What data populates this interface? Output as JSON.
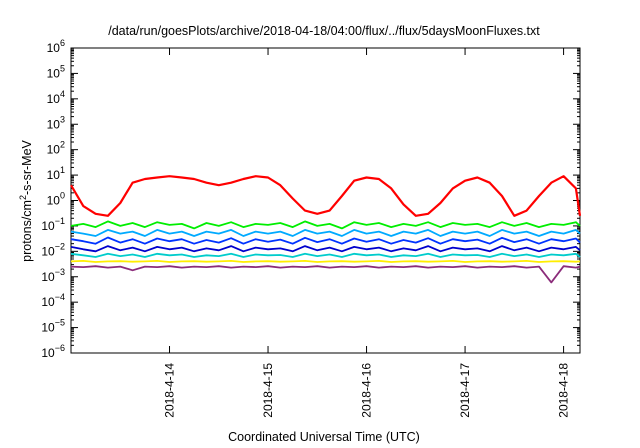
{
  "chart_data": {
    "type": "line",
    "title": "/data/run/goesPlots/archive/2018-04-18/04:00/flux/../flux/5daysMoonFluxes.txt",
    "xlabel": "Coordinated Universal Time (UTC)",
    "ylabel": "protons/cm2-s-sr-MeV",
    "yscale": "log",
    "ylim": [
      1e-06,
      1000000.0
    ],
    "xlim": [
      "2018-04-13T00:00",
      "2018-04-18T04:00"
    ],
    "y_ticks": [
      1e-06,
      1e-05,
      0.0001,
      0.001,
      0.01,
      0.1,
      1,
      10,
      100,
      1000,
      10000,
      100000,
      1000000
    ],
    "x_ticks": [
      "2018-4-14",
      "2018-4-15",
      "2018-4-16",
      "2018-4-17",
      "2018-4-18"
    ],
    "grid": false,
    "legend": "none",
    "x": [
      "2018-04-13T00:00",
      "2018-04-13T03:00",
      "2018-04-13T06:00",
      "2018-04-13T09:00",
      "2018-04-13T12:00",
      "2018-04-13T15:00",
      "2018-04-13T18:00",
      "2018-04-13T21:00",
      "2018-04-14T00:00",
      "2018-04-14T03:00",
      "2018-04-14T06:00",
      "2018-04-14T09:00",
      "2018-04-14T12:00",
      "2018-04-14T15:00",
      "2018-04-14T18:00",
      "2018-04-14T21:00",
      "2018-04-15T00:00",
      "2018-04-15T03:00",
      "2018-04-15T06:00",
      "2018-04-15T09:00",
      "2018-04-15T12:00",
      "2018-04-15T15:00",
      "2018-04-15T18:00",
      "2018-04-15T21:00",
      "2018-04-16T00:00",
      "2018-04-16T03:00",
      "2018-04-16T06:00",
      "2018-04-16T09:00",
      "2018-04-16T12:00",
      "2018-04-16T15:00",
      "2018-04-16T18:00",
      "2018-04-16T21:00",
      "2018-04-17T00:00",
      "2018-04-17T03:00",
      "2018-04-17T06:00",
      "2018-04-17T09:00",
      "2018-04-17T12:00",
      "2018-04-17T15:00",
      "2018-04-17T18:00",
      "2018-04-17T21:00",
      "2018-04-18T00:00",
      "2018-04-18T03:00",
      "2018-04-18T04:00"
    ],
    "series": [
      {
        "color": "#ff0000",
        "values": [
          4,
          0.6,
          0.3,
          0.25,
          0.8,
          5,
          7,
          8,
          9,
          8,
          7,
          5,
          4,
          5,
          7,
          9,
          8,
          4,
          1.2,
          0.4,
          0.3,
          0.4,
          1.5,
          6,
          8,
          7,
          3,
          0.7,
          0.25,
          0.3,
          0.8,
          3,
          6,
          8,
          5,
          1.5,
          0.25,
          0.4,
          1.5,
          5,
          9,
          3,
          0.25
        ]
      },
      {
        "color": "#00ee00",
        "values": [
          0.1,
          0.12,
          0.09,
          0.15,
          0.1,
          0.13,
          0.09,
          0.14,
          0.11,
          0.12,
          0.08,
          0.13,
          0.1,
          0.14,
          0.09,
          0.12,
          0.11,
          0.13,
          0.09,
          0.15,
          0.1,
          0.12,
          0.08,
          0.14,
          0.11,
          0.13,
          0.09,
          0.12,
          0.1,
          0.14,
          0.09,
          0.13,
          0.11,
          0.12,
          0.09,
          0.14,
          0.1,
          0.13,
          0.09,
          0.12,
          0.11,
          0.14,
          0.1
        ]
      },
      {
        "color": "#00aaff",
        "values": [
          0.06,
          0.05,
          0.04,
          0.07,
          0.05,
          0.06,
          0.04,
          0.07,
          0.05,
          0.06,
          0.04,
          0.06,
          0.05,
          0.07,
          0.04,
          0.06,
          0.05,
          0.06,
          0.04,
          0.07,
          0.05,
          0.06,
          0.04,
          0.07,
          0.05,
          0.06,
          0.04,
          0.06,
          0.05,
          0.07,
          0.04,
          0.06,
          0.05,
          0.06,
          0.04,
          0.07,
          0.05,
          0.06,
          0.04,
          0.06,
          0.05,
          0.07,
          0.05
        ]
      },
      {
        "color": "#0033ff",
        "values": [
          0.03,
          0.025,
          0.02,
          0.035,
          0.022,
          0.03,
          0.02,
          0.032,
          0.025,
          0.03,
          0.02,
          0.028,
          0.022,
          0.033,
          0.02,
          0.03,
          0.024,
          0.029,
          0.02,
          0.034,
          0.023,
          0.03,
          0.02,
          0.032,
          0.024,
          0.03,
          0.02,
          0.028,
          0.022,
          0.033,
          0.02,
          0.03,
          0.025,
          0.029,
          0.02,
          0.034,
          0.023,
          0.03,
          0.02,
          0.03,
          0.025,
          0.032,
          0.022
        ]
      },
      {
        "color": "#0000cc",
        "values": [
          0.015,
          0.012,
          0.01,
          0.016,
          0.011,
          0.014,
          0.01,
          0.015,
          0.012,
          0.014,
          0.01,
          0.013,
          0.011,
          0.016,
          0.01,
          0.014,
          0.012,
          0.013,
          0.01,
          0.016,
          0.011,
          0.014,
          0.01,
          0.015,
          0.012,
          0.014,
          0.01,
          0.013,
          0.011,
          0.016,
          0.01,
          0.014,
          0.012,
          0.013,
          0.01,
          0.016,
          0.011,
          0.014,
          0.01,
          0.014,
          0.012,
          0.015,
          0.011
        ]
      },
      {
        "color": "#00cccc",
        "values": [
          0.008,
          0.007,
          0.006,
          0.008,
          0.0065,
          0.0075,
          0.006,
          0.008,
          0.007,
          0.0075,
          0.006,
          0.007,
          0.0065,
          0.008,
          0.006,
          0.0075,
          0.007,
          0.0072,
          0.006,
          0.008,
          0.0065,
          0.0075,
          0.006,
          0.008,
          0.007,
          0.0075,
          0.006,
          0.007,
          0.0065,
          0.008,
          0.006,
          0.0075,
          0.007,
          0.0072,
          0.006,
          0.008,
          0.0065,
          0.0075,
          0.006,
          0.0075,
          0.007,
          0.008,
          0.006
        ]
      },
      {
        "color": "#ffee00",
        "values": [
          0.004,
          0.0042,
          0.0038,
          0.004,
          0.0041,
          0.0039,
          0.004,
          0.0042,
          0.0038,
          0.004,
          0.0041,
          0.0039,
          0.004,
          0.0042,
          0.0038,
          0.004,
          0.0041,
          0.0039,
          0.004,
          0.0042,
          0.0038,
          0.004,
          0.0041,
          0.0039,
          0.004,
          0.0042,
          0.0038,
          0.004,
          0.0041,
          0.0039,
          0.004,
          0.0042,
          0.0038,
          0.004,
          0.0041,
          0.0039,
          0.004,
          0.0042,
          0.0038,
          0.004,
          0.0041,
          0.0039,
          0.004
        ]
      },
      {
        "color": "#8b2c7a",
        "values": [
          0.0025,
          0.0024,
          0.0026,
          0.0023,
          0.0025,
          0.0018,
          0.0025,
          0.0024,
          0.0026,
          0.0023,
          0.0025,
          0.0024,
          0.0026,
          0.0023,
          0.0025,
          0.0024,
          0.0026,
          0.0023,
          0.0025,
          0.0024,
          0.0026,
          0.0023,
          0.0025,
          0.0024,
          0.0026,
          0.0023,
          0.0025,
          0.0024,
          0.0026,
          0.0023,
          0.0025,
          0.0024,
          0.0026,
          0.0023,
          0.0025,
          0.0024,
          0.0026,
          0.0023,
          0.0025,
          0.0006,
          0.0026,
          0.0023,
          0.0025
        ]
      }
    ]
  }
}
